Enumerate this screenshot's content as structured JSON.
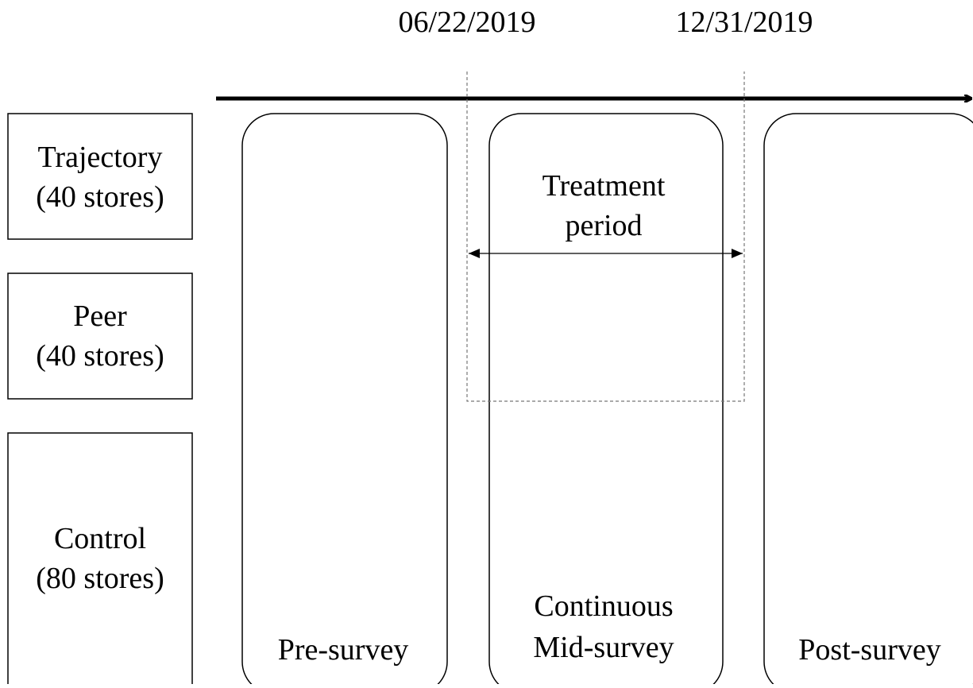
{
  "dates": [
    "06/22/2019",
    "12/31/2019"
  ],
  "groups": [
    {
      "name": "Trajectory",
      "count": "(40 stores)"
    },
    {
      "name": "Peer",
      "count": "(40 stores)"
    },
    {
      "name": "Control",
      "count": "(80 stores)"
    }
  ],
  "treatment": [
    "Treatment",
    "period"
  ],
  "phases": [
    [
      "Pre-survey"
    ],
    [
      "Continuous",
      "Mid-survey"
    ],
    [
      "Post-survey"
    ]
  ]
}
